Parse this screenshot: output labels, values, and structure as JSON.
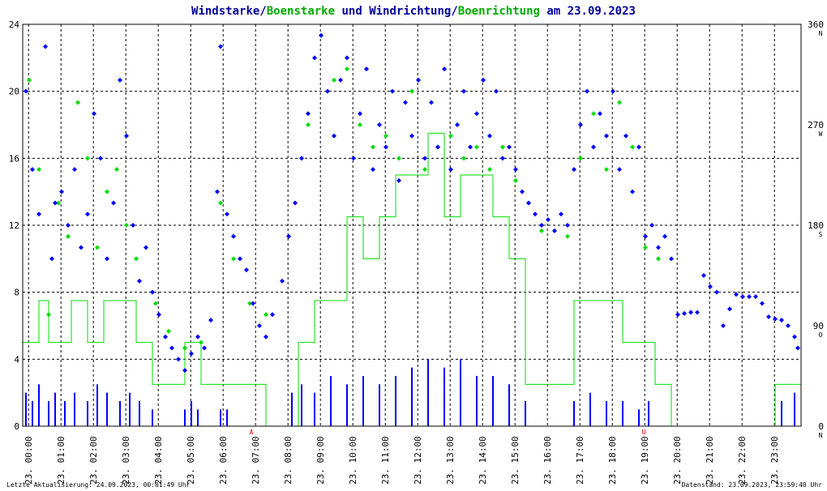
{
  "title": {
    "part1": "Windstarke",
    "sep1": "/",
    "part2": "Boenstarke",
    "part3": " und ",
    "part4": "Windrichtung",
    "sep2": "/",
    "part5": "Boenrichtung",
    "part6": " am 23.09.2023"
  },
  "colors": {
    "wind": "#0000ff",
    "gust": "#00dd00",
    "title_dark": "#000099",
    "title_green": "#00aa00",
    "grid": "#000000",
    "marker": "#cc0000"
  },
  "footer": {
    "left": "Letzte Aktualisierung: 24.09.2023, 00:01:49 Uhr",
    "right": "Datenstand: 23.09.2023, 23:59:40 Uhr"
  },
  "markers": [
    "A",
    "U"
  ],
  "chart_data": {
    "type": "scatter",
    "xlabel": "",
    "ylabel": "",
    "ylim": [
      0,
      24
    ],
    "y2lim": [
      0,
      360
    ],
    "grid": true,
    "x_ticks": [
      "23. 00:00",
      "23. 01:00",
      "23. 02:00",
      "23. 03:00",
      "23. 04:00",
      "23. 05:00",
      "23. 06:00",
      "23. 07:00",
      "23. 08:00",
      "23. 09:00",
      "23. 10:00",
      "23. 11:00",
      "23. 12:00",
      "23. 13:00",
      "23. 14:00",
      "23. 15:00",
      "23. 16:00",
      "23. 17:00",
      "23. 18:00",
      "23. 19:00",
      "23. 20:00",
      "23. 21:00",
      "23. 22:00",
      "23. 23:00"
    ],
    "y_ticks": [
      0,
      4,
      8,
      12,
      16,
      20,
      24
    ],
    "y2_ticks": [
      {
        "value": 0,
        "label": "0",
        "dir": "N"
      },
      {
        "value": 90,
        "label": "90",
        "dir": "O"
      },
      {
        "value": 180,
        "label": "180",
        "dir": "S"
      },
      {
        "value": 270,
        "label": "270",
        "dir": "W"
      },
      {
        "value": 360,
        "label": "360",
        "dir": "N"
      }
    ],
    "series": [
      {
        "name": "Windstarke",
        "kind": "bars",
        "hours": [
          0.1,
          0.3,
          0.5,
          0.8,
          1.0,
          1.3,
          1.6,
          2.0,
          2.3,
          2.6,
          3.0,
          3.3,
          3.6,
          4.0,
          5.0,
          5.2,
          5.4,
          6.1,
          6.3,
          8.3,
          8.6,
          9.0,
          9.5,
          10.0,
          10.5,
          11.0,
          11.5,
          12.0,
          12.5,
          13.0,
          13.5,
          14.0,
          14.5,
          15.0,
          15.5,
          17.0,
          17.5,
          18.0,
          18.5,
          19.0,
          19.3,
          23.4,
          23.8
        ],
        "values": [
          2,
          1.5,
          2.5,
          1.5,
          2,
          1.5,
          2,
          1.5,
          2.5,
          2,
          1.5,
          2,
          1.5,
          1,
          1,
          1.5,
          1,
          1,
          1,
          2,
          2.5,
          2,
          3,
          2.5,
          3,
          2.5,
          3,
          3.5,
          4,
          3.5,
          4,
          3,
          3,
          2.5,
          1.5,
          1.5,
          2,
          1.5,
          1.5,
          1,
          1.5,
          1.5,
          2
        ]
      },
      {
        "name": "Boenstarke",
        "kind": "steps",
        "hours": [
          0.0,
          0.2,
          0.5,
          0.8,
          1.0,
          1.5,
          2.0,
          2.5,
          3.0,
          3.5,
          4.0,
          4.5,
          5.0,
          5.5,
          6.0,
          6.5,
          7.0,
          7.5,
          8.0,
          8.5,
          9.0,
          9.5,
          10.0,
          10.5,
          11.0,
          11.5,
          12.0,
          12.5,
          13.0,
          13.5,
          14.0,
          14.5,
          15.0,
          15.5,
          16.0,
          16.5,
          17.0,
          17.5,
          18.0,
          18.5,
          19.0,
          19.5,
          20.0,
          23.2,
          23.6,
          24.0
        ],
        "values": [
          5,
          5,
          7.5,
          5,
          5,
          7.5,
          5,
          7.5,
          7.5,
          5,
          2.5,
          2.5,
          5,
          2.5,
          2.5,
          2.5,
          2.5,
          0,
          0,
          5,
          7.5,
          7.5,
          12.5,
          10,
          12.5,
          15,
          15,
          17.5,
          12.5,
          15,
          15,
          12.5,
          10,
          2.5,
          2.5,
          2.5,
          7.5,
          7.5,
          7.5,
          5,
          5,
          2.5,
          0,
          2.5,
          2.5,
          0
        ]
      },
      {
        "name": "Windrichtung",
        "kind": "scatter",
        "points": [
          [
            0.1,
            300
          ],
          [
            0.3,
            230
          ],
          [
            0.5,
            190
          ],
          [
            0.7,
            340
          ],
          [
            0.9,
            150
          ],
          [
            1.0,
            200
          ],
          [
            1.2,
            210
          ],
          [
            1.4,
            180
          ],
          [
            1.6,
            230
          ],
          [
            1.8,
            160
          ],
          [
            2.0,
            190
          ],
          [
            2.2,
            280
          ],
          [
            2.4,
            240
          ],
          [
            2.6,
            150
          ],
          [
            2.8,
            200
          ],
          [
            3.0,
            310
          ],
          [
            3.2,
            260
          ],
          [
            3.4,
            180
          ],
          [
            3.6,
            130
          ],
          [
            3.8,
            160
          ],
          [
            4.0,
            120
          ],
          [
            4.2,
            100
          ],
          [
            4.4,
            80
          ],
          [
            4.6,
            70
          ],
          [
            4.8,
            60
          ],
          [
            5.0,
            50
          ],
          [
            5.2,
            65
          ],
          [
            5.4,
            80
          ],
          [
            5.6,
            70
          ],
          [
            5.8,
            95
          ],
          [
            6.0,
            210
          ],
          [
            6.1,
            340
          ],
          [
            6.3,
            190
          ],
          [
            6.5,
            170
          ],
          [
            6.7,
            150
          ],
          [
            6.9,
            140
          ],
          [
            7.1,
            110
          ],
          [
            7.3,
            90
          ],
          [
            7.5,
            80
          ],
          [
            7.7,
            100
          ],
          [
            8.0,
            130
          ],
          [
            8.2,
            170
          ],
          [
            8.4,
            200
          ],
          [
            8.6,
            240
          ],
          [
            8.8,
            280
          ],
          [
            9.0,
            330
          ],
          [
            9.2,
            350
          ],
          [
            9.4,
            300
          ],
          [
            9.6,
            260
          ],
          [
            9.8,
            310
          ],
          [
            10.0,
            330
          ],
          [
            10.2,
            240
          ],
          [
            10.4,
            280
          ],
          [
            10.6,
            320
          ],
          [
            10.8,
            230
          ],
          [
            11.0,
            270
          ],
          [
            11.2,
            250
          ],
          [
            11.4,
            300
          ],
          [
            11.6,
            220
          ],
          [
            11.8,
            290
          ],
          [
            12.0,
            260
          ],
          [
            12.2,
            310
          ],
          [
            12.4,
            240
          ],
          [
            12.6,
            290
          ],
          [
            12.8,
            250
          ],
          [
            13.0,
            320
          ],
          [
            13.2,
            230
          ],
          [
            13.4,
            270
          ],
          [
            13.6,
            300
          ],
          [
            13.8,
            250
          ],
          [
            14.0,
            280
          ],
          [
            14.2,
            310
          ],
          [
            14.4,
            260
          ],
          [
            14.6,
            300
          ],
          [
            14.8,
            240
          ],
          [
            15.0,
            250
          ],
          [
            15.2,
            230
          ],
          [
            15.4,
            210
          ],
          [
            15.6,
            200
          ],
          [
            15.8,
            190
          ],
          [
            16.0,
            180
          ],
          [
            16.2,
            185
          ],
          [
            16.4,
            175
          ],
          [
            16.6,
            190
          ],
          [
            16.8,
            180
          ],
          [
            17.0,
            230
          ],
          [
            17.2,
            270
          ],
          [
            17.4,
            300
          ],
          [
            17.6,
            250
          ],
          [
            17.8,
            280
          ],
          [
            18.0,
            260
          ],
          [
            18.2,
            300
          ],
          [
            18.4,
            230
          ],
          [
            18.6,
            260
          ],
          [
            18.8,
            210
          ],
          [
            19.0,
            250
          ],
          [
            19.2,
            170
          ],
          [
            19.4,
            180
          ],
          [
            19.6,
            160
          ],
          [
            19.8,
            170
          ],
          [
            20.0,
            150
          ],
          [
            20.2,
            100
          ],
          [
            20.4,
            101
          ],
          [
            20.6,
            102
          ],
          [
            20.8,
            102
          ],
          [
            21.0,
            135
          ],
          [
            21.2,
            125
          ],
          [
            21.4,
            120
          ],
          [
            21.6,
            90
          ],
          [
            21.8,
            105
          ],
          [
            22.0,
            118
          ],
          [
            22.2,
            116
          ],
          [
            22.4,
            116
          ],
          [
            22.6,
            116
          ],
          [
            22.8,
            110
          ],
          [
            23.0,
            98
          ],
          [
            23.2,
            96
          ],
          [
            23.4,
            95
          ],
          [
            23.6,
            90
          ],
          [
            23.8,
            80
          ],
          [
            23.9,
            70
          ]
        ]
      },
      {
        "name": "Boenrichtung",
        "kind": "scatter",
        "points": [
          [
            0.2,
            310
          ],
          [
            0.5,
            230
          ],
          [
            0.8,
            100
          ],
          [
            1.1,
            200
          ],
          [
            1.4,
            170
          ],
          [
            1.7,
            290
          ],
          [
            2.0,
            240
          ],
          [
            2.3,
            160
          ],
          [
            2.6,
            210
          ],
          [
            2.9,
            230
          ],
          [
            3.2,
            180
          ],
          [
            3.5,
            150
          ],
          [
            4.1,
            110
          ],
          [
            4.5,
            85
          ],
          [
            5.0,
            70
          ],
          [
            5.5,
            75
          ],
          [
            6.1,
            200
          ],
          [
            6.5,
            150
          ],
          [
            7.0,
            110
          ],
          [
            7.5,
            100
          ],
          [
            8.2,
            170
          ],
          [
            8.8,
            270
          ],
          [
            9.2,
            350
          ],
          [
            9.6,
            310
          ],
          [
            10.0,
            320
          ],
          [
            10.4,
            270
          ],
          [
            10.8,
            250
          ],
          [
            11.2,
            260
          ],
          [
            11.6,
            240
          ],
          [
            12.0,
            300
          ],
          [
            12.4,
            230
          ],
          [
            12.8,
            250
          ],
          [
            13.2,
            260
          ],
          [
            13.6,
            240
          ],
          [
            14.0,
            250
          ],
          [
            14.4,
            230
          ],
          [
            14.8,
            250
          ],
          [
            15.2,
            220
          ],
          [
            15.6,
            200
          ],
          [
            16.0,
            175
          ],
          [
            16.4,
            175
          ],
          [
            16.8,
            170
          ],
          [
            17.2,
            240
          ],
          [
            17.6,
            280
          ],
          [
            18.0,
            230
          ],
          [
            18.4,
            290
          ],
          [
            18.8,
            250
          ],
          [
            19.2,
            160
          ],
          [
            19.6,
            150
          ]
        ]
      }
    ]
  }
}
